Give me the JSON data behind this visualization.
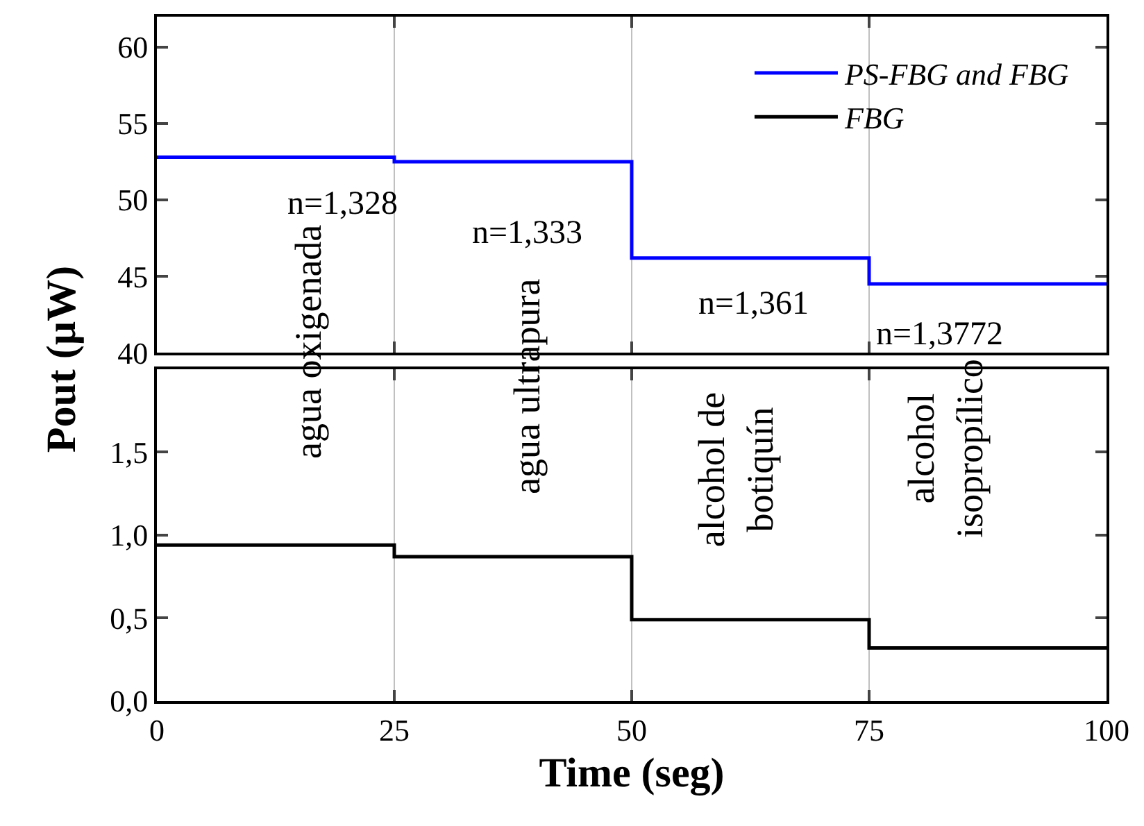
{
  "chart_data": [
    {
      "type": "step",
      "ylabel": "Pout (µW)",
      "x": [
        0,
        25,
        50,
        75,
        100
      ],
      "xlim": [
        0,
        100
      ],
      "xticks": [
        0,
        25,
        50,
        75,
        100
      ],
      "ylim": [
        40,
        62
      ],
      "yticks": [
        40,
        45,
        50,
        55,
        60
      ],
      "tick_labels": "y",
      "legend": "top right",
      "grid": false,
      "series": [
        {
          "name": "PS-FBG and FBG",
          "color": "#0000ff",
          "values": [
            52.8,
            52.5,
            46.2,
            44.5,
            44.5
          ]
        }
      ],
      "ref_lines": [
        {
          "axis": "x",
          "value": 25,
          "color": "#c0c0c0"
        },
        {
          "axis": "x",
          "value": 50,
          "color": "#c0c0c0"
        },
        {
          "axis": "x",
          "value": 75,
          "color": "#c0c0c0"
        }
      ],
      "annotations": [
        "n=1,328",
        "n=1,333",
        "n=1,361",
        "n=1,3772"
      ]
    },
    {
      "type": "step",
      "xlabel": "Time (seg)",
      "x": [
        0,
        25,
        50,
        75,
        100
      ],
      "xlim": [
        0,
        100
      ],
      "xticks": [
        0,
        25,
        50,
        75,
        100
      ],
      "ylim": [
        0,
        2
      ],
      "yticks": [
        {
          "value": 0,
          "label": "0,0"
        },
        {
          "value": 0.5,
          "label": "0,5"
        },
        {
          "value": 1,
          "label": "1,0"
        },
        {
          "value": 1.5,
          "label": "1,5"
        }
      ],
      "grid": false,
      "series": [
        {
          "name": "FBG",
          "color": "#000000",
          "values": [
            0.94,
            0.87,
            0.49,
            0.32,
            0.32
          ]
        }
      ],
      "ref_lines": [
        {
          "axis": "x",
          "value": 25,
          "color": "#c0c0c0"
        },
        {
          "axis": "x",
          "value": 50,
          "color": "#c0c0c0"
        },
        {
          "axis": "x",
          "value": 75,
          "color": "#c0c0c0"
        }
      ],
      "annotations": [
        "agua oxigenada",
        "agua ultrapura",
        "alcohol de\nbotiquín",
        "alcohol\nisopropílico"
      ]
    }
  ]
}
